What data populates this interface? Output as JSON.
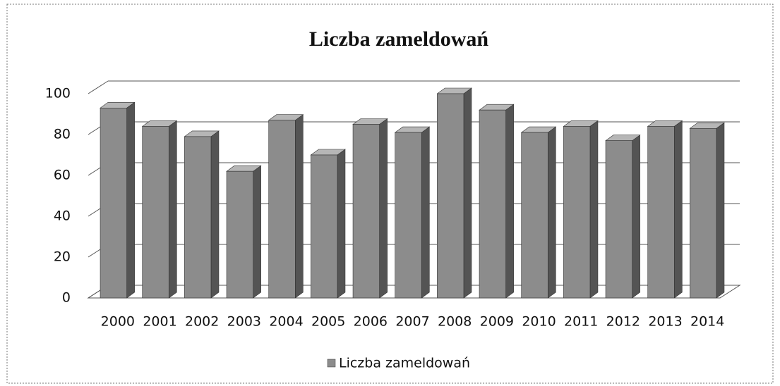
{
  "chart_data": {
    "type": "bar3d",
    "title": "Liczba zameldowań",
    "categories": [
      "2000",
      "2001",
      "2002",
      "2003",
      "2004",
      "2005",
      "2006",
      "2007",
      "2008",
      "2009",
      "2010",
      "2011",
      "2012",
      "2013",
      "2014"
    ],
    "series": [
      {
        "name": "Liczba zameldowań",
        "color": "#8c8c8c",
        "values": [
          93,
          84,
          79,
          62,
          87,
          70,
          85,
          81,
          100,
          92,
          81,
          84,
          77,
          84,
          83
        ]
      }
    ],
    "ylim": [
      0,
      100
    ],
    "yticks": [
      0,
      20,
      40,
      60,
      80,
      100
    ],
    "grid": true,
    "legend": "bottom"
  }
}
